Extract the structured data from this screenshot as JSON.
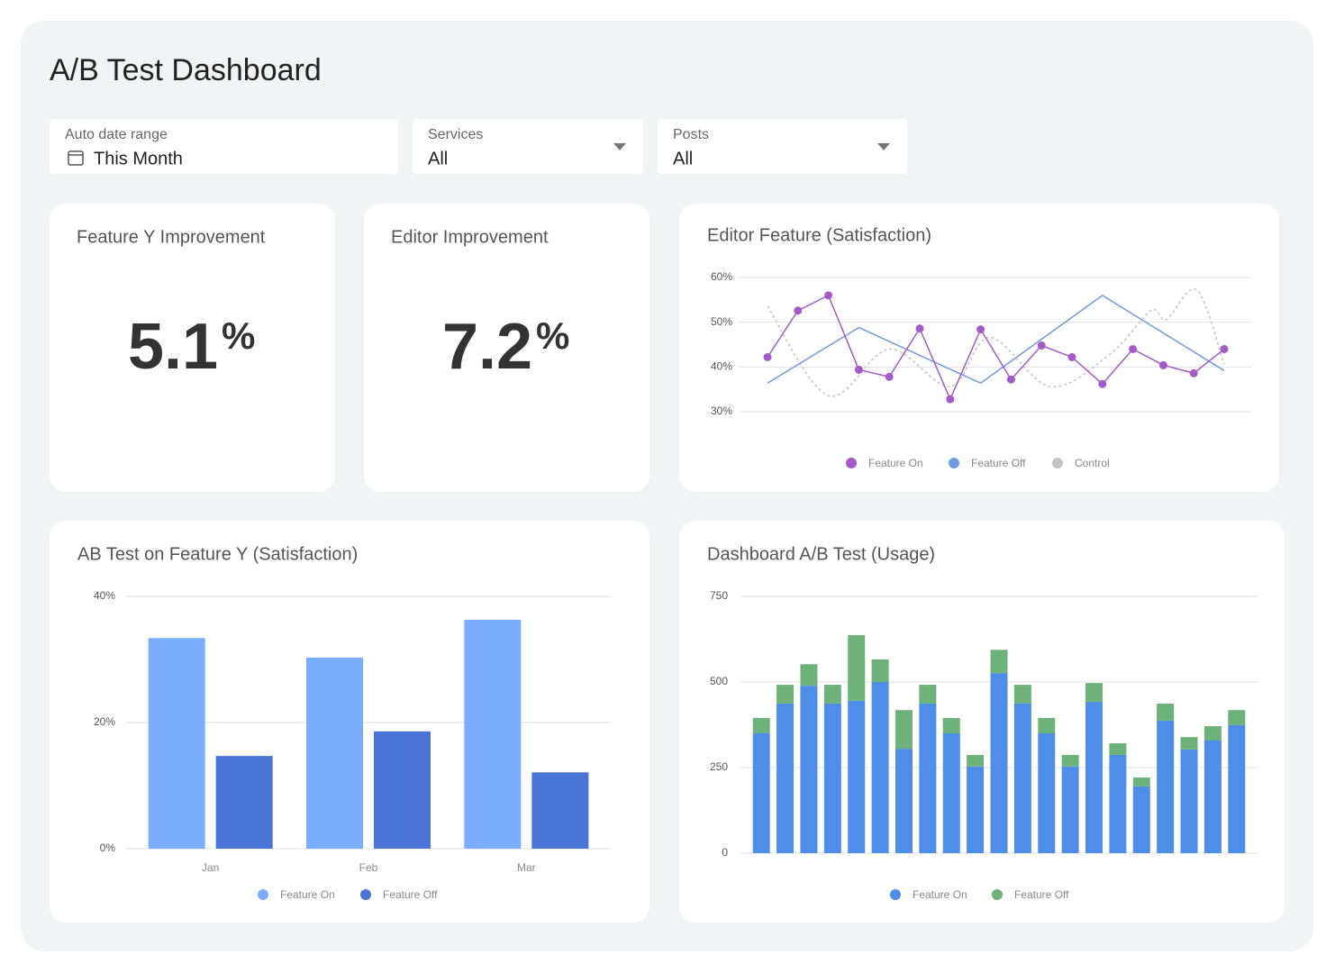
{
  "header": {
    "title": "A/B Test Dashboard"
  },
  "filters": [
    {
      "label": "Auto date range",
      "value": "This Month"
    },
    {
      "label": "Services",
      "value": "All"
    },
    {
      "label": "Posts",
      "value": "All"
    }
  ],
  "kpis": [
    {
      "title": "Feature Y Improvement",
      "value": 5.1,
      "unit": "%"
    },
    {
      "title": "Editor Improvement",
      "value": 7.2,
      "unit": "%"
    }
  ],
  "chart_data": [
    {
      "type": "line",
      "title": "Editor Feature (Satisfaction)",
      "xlim": [
        0,
        15
      ],
      "ylim": [
        30,
        60
      ],
      "yticks": [
        {
          "value": 30,
          "label": "30%"
        },
        {
          "value": 40,
          "label": "40%"
        },
        {
          "value": 50,
          "label": "50%"
        },
        {
          "value": 60,
          "label": "60%"
        }
      ],
      "grid": true,
      "legend": "bottom",
      "series": [
        {
          "name": "Feature On",
          "color": "#a55bc7",
          "markers": true,
          "x": [
            0,
            1,
            2,
            3,
            4,
            5,
            6,
            7,
            8,
            9,
            10,
            11,
            12,
            13,
            14,
            15
          ],
          "values": [
            42.2,
            52.6,
            56,
            39.4,
            37.8,
            48.6,
            32.8,
            48.4,
            37.2,
            44.8,
            42.2,
            36.2,
            44,
            40.4,
            38.6,
            44
          ]
        },
        {
          "name": "Feature Off",
          "color": "#6f9be3",
          "x": [
            0,
            3,
            7,
            11,
            15
          ],
          "values": [
            36.4,
            48.8,
            36.4,
            56,
            39.2
          ]
        },
        {
          "name": "Control",
          "color": "#c4c4c4",
          "dashed": true,
          "smooth": true,
          "x": [
            0,
            2,
            4,
            6,
            7.3,
            9.3,
            11.3,
            12.6,
            13.1,
            14.1,
            15
          ],
          "values": [
            53.6,
            33.6,
            44,
            35.6,
            46.6,
            35.6,
            43.2,
            52.6,
            50.6,
            57.2,
            40.6
          ]
        }
      ]
    },
    {
      "type": "bar",
      "title": "AB Test on Feature Y (Satisfaction)",
      "categories": [
        "Jan",
        "Feb",
        "Mar"
      ],
      "ylim": [
        0,
        40
      ],
      "yticks": [
        {
          "value": 0,
          "label": "0%"
        },
        {
          "value": 20,
          "label": "20%"
        },
        {
          "value": 40,
          "label": "40%"
        }
      ],
      "grid": true,
      "legend": "bottom",
      "series": [
        {
          "name": "Feature On",
          "color": "#7aaefc",
          "values": [
            33.4,
            30.3,
            36.3
          ]
        },
        {
          "name": "Feature Off",
          "color": "#4a74d6",
          "values": [
            14.7,
            18.6,
            12.1
          ]
        }
      ]
    },
    {
      "type": "stacked_bar",
      "title": "Dashboard A/B Test (Usage)",
      "categories": [
        null,
        null,
        null,
        null,
        null,
        null,
        null,
        null,
        null,
        null,
        null,
        null,
        null,
        null,
        null,
        null,
        null,
        null,
        null,
        null,
        null
      ],
      "ylim": [
        0,
        750
      ],
      "yticks": [
        0,
        250,
        500,
        750
      ],
      "grid": true,
      "legend": "bottom",
      "series": [
        {
          "name": "Feature On",
          "color": "#4f8ee8",
          "values": [
            350,
            437,
            489,
            437,
            445,
            500,
            305,
            437,
            350,
            253,
            526,
            437,
            350,
            253,
            442,
            287,
            195,
            387,
            303,
            329,
            374
          ]
        },
        {
          "name": "Feature Off",
          "color": "#6db27a",
          "values": [
            45,
            55,
            63,
            55,
            192,
            66,
            113,
            55,
            45,
            34,
            68,
            55,
            45,
            34,
            55,
            34,
            26,
            50,
            36,
            42,
            44
          ]
        }
      ]
    }
  ]
}
